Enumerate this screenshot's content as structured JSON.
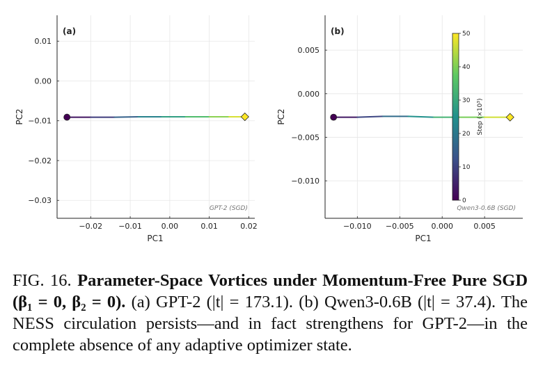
{
  "chart_data": [
    {
      "type": "line",
      "panel_label": "(a)",
      "watermark": "GPT-2 (SGD)",
      "xlabel": "PC1",
      "ylabel": "PC2",
      "xlim": [
        -0.0285,
        0.0215
      ],
      "ylim": [
        -0.0345,
        0.0165
      ],
      "xticks": [
        -0.02,
        -0.01,
        0.0,
        0.01,
        0.02
      ],
      "xtick_labels": [
        "−0.02",
        "−0.01",
        "0.00",
        "0.01",
        "0.02"
      ],
      "yticks": [
        0.01,
        0.0,
        -0.01,
        -0.02,
        -0.03
      ],
      "ytick_labels": [
        "0.01",
        "0.00",
        "−0.01",
        "−0.02",
        "−0.03"
      ],
      "grid": true,
      "trajectory": {
        "x": [
          -0.026,
          -0.02,
          -0.014,
          -0.008,
          -0.002,
          0.004,
          0.01,
          0.015,
          0.019
        ],
        "y": [
          -0.0091,
          -0.0091,
          -0.0091,
          -0.009,
          -0.009,
          -0.009,
          -0.009,
          -0.009,
          -0.009
        ],
        "step_k": [
          0,
          6,
          12,
          19,
          25,
          31,
          38,
          44,
          50
        ]
      },
      "start_marker": {
        "x": -0.026,
        "y": -0.0091,
        "shape": "circle",
        "color": "#440154"
      },
      "end_marker": {
        "x": 0.019,
        "y": -0.009,
        "shape": "diamond",
        "color": "#fde725"
      }
    },
    {
      "type": "line",
      "panel_label": "(b)",
      "watermark": "Qwen3-0.6B (SGD)",
      "xlabel": "PC1",
      "ylabel": "PC2",
      "xlim": [
        -0.0138,
        0.0095
      ],
      "ylim": [
        -0.0143,
        0.009
      ],
      "xticks": [
        -0.01,
        -0.005,
        0.0,
        0.005
      ],
      "xtick_labels": [
        "−0.010",
        "−0.005",
        "0.000",
        "0.005"
      ],
      "yticks": [
        0.005,
        0.0,
        -0.005,
        -0.01
      ],
      "ytick_labels": [
        "0.005",
        "0.000",
        "−0.005",
        "−0.010"
      ],
      "grid": true,
      "trajectory": {
        "x": [
          -0.0128,
          -0.01,
          -0.007,
          -0.004,
          -0.001,
          0.002,
          0.005,
          0.008
        ],
        "y": [
          -0.0027,
          -0.0027,
          -0.0026,
          -0.0026,
          -0.0027,
          -0.0027,
          -0.0027,
          -0.0027
        ],
        "step_k": [
          0,
          7,
          14,
          21,
          29,
          36,
          43,
          50
        ]
      },
      "start_marker": {
        "x": -0.0128,
        "y": -0.0027,
        "shape": "circle",
        "color": "#440154"
      },
      "end_marker": {
        "x": 0.008,
        "y": -0.0027,
        "shape": "diamond",
        "color": "#fde725"
      },
      "colorbar": {
        "label": "Step (×10³)",
        "range": [
          0,
          50
        ],
        "ticks": [
          0,
          10,
          20,
          30,
          40,
          50
        ],
        "colormap": [
          "#440154",
          "#3b528b",
          "#21918c",
          "#5ec962",
          "#fde725"
        ]
      }
    }
  ],
  "caption": {
    "fig_label": "FIG. 16.",
    "title_bold": "Parameter-Space Vortices under Momentum-Free Pure SGD (β₁ = 0, β₂ = 0).",
    "body": "(a) GPT-2 (|t| = 173.1). (b) Qwen3-0.6B (|t| = 37.4). The NESS circulation persists—and in fact strengthens for GPT-2—in the complete absence of any adaptive optimizer state."
  }
}
